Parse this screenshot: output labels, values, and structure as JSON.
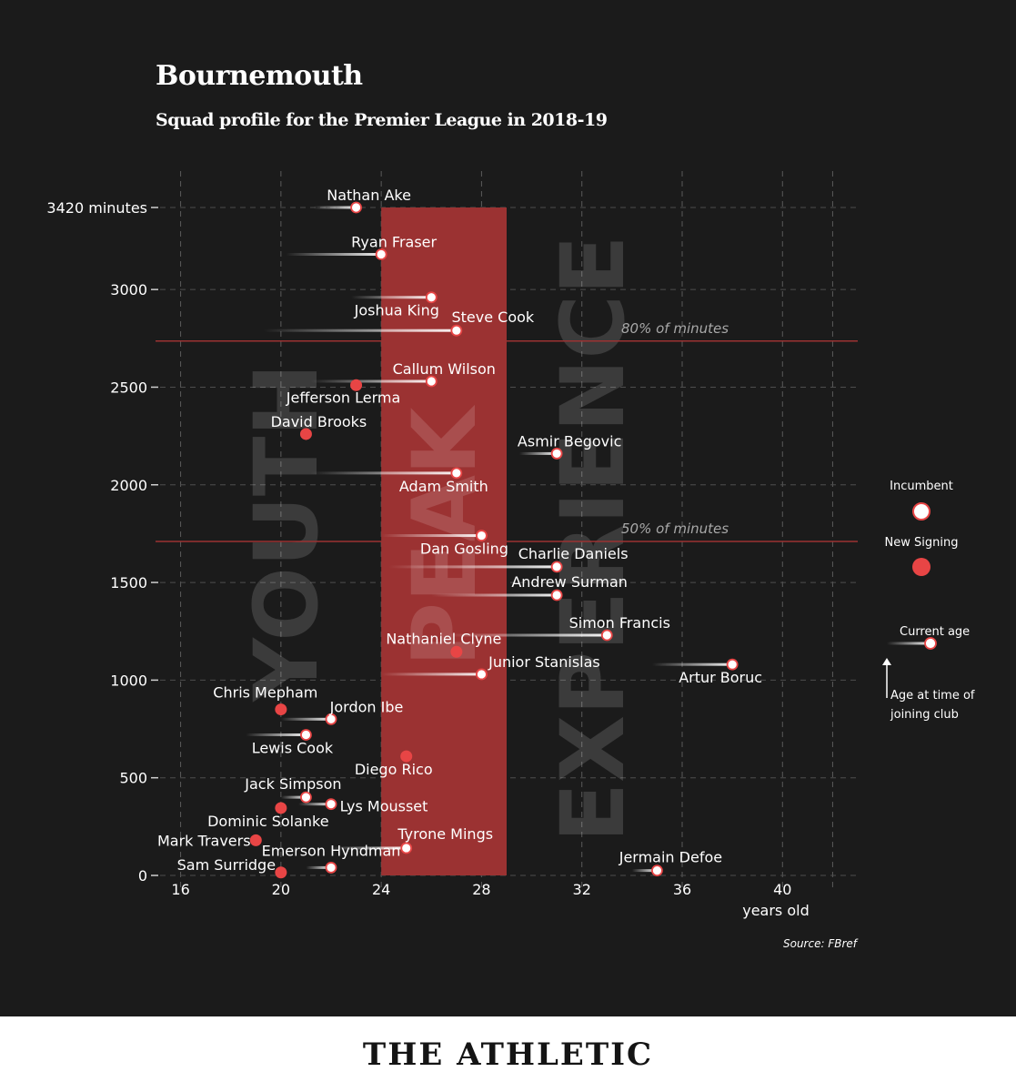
{
  "title": "Bournemouth",
  "subtitle": "Squad profile for the Premier League in 2018-19",
  "source": "Source: FBref",
  "brand": "THE ATHLETIC",
  "colors": {
    "background": "#1b1b1b",
    "peak_band": "#9b3232",
    "new_signing": "#e84545",
    "incumbent": "#ffffff",
    "threshold_line": "#9b3232"
  },
  "chart_data": {
    "type": "scatter",
    "title": "Bournemouth",
    "subtitle": "Squad profile for the Premier League in 2018-19",
    "xlabel": "years old",
    "ylabel": "",
    "xlim": [
      15,
      43
    ],
    "ylim": [
      0,
      3420
    ],
    "xticks": [
      16,
      20,
      24,
      28,
      32,
      36,
      40
    ],
    "yticks": [
      0,
      500,
      1000,
      1500,
      2000,
      2500,
      3000,
      3420
    ],
    "ytick_labels": [
      "0",
      "500",
      "1000",
      "1500",
      "2000",
      "2500",
      "3000",
      "3420 minutes"
    ],
    "grid": true,
    "zones": [
      {
        "label": "YOUTH",
        "from": 15,
        "to": 24
      },
      {
        "label": "PEAK",
        "from": 24,
        "to": 29
      },
      {
        "label": "EXPERIENCE",
        "from": 29,
        "to": 43
      }
    ],
    "thresholds": [
      {
        "label": "80% of minutes",
        "value": 2736
      },
      {
        "label": "50% of minutes",
        "value": 1710
      }
    ],
    "legend": {
      "incumbent": "Incumbent",
      "new_signing": "New Signing",
      "current_age": "Current age",
      "join_age": "Age at time of joining club"
    },
    "players": [
      {
        "name": "Nathan Ake",
        "age": 23,
        "minutes": 3420,
        "joined_age": 21.3,
        "status": "incumbent"
      },
      {
        "name": "Ryan Fraser",
        "age": 24,
        "minutes": 3180,
        "joined_age": 20.2,
        "status": "incumbent"
      },
      {
        "name": "Joshua King",
        "age": 26,
        "minutes": 2960,
        "joined_age": 22.8,
        "status": "incumbent"
      },
      {
        "name": "Steve Cook",
        "age": 27,
        "minutes": 2790,
        "joined_age": 19.3,
        "status": "incumbent"
      },
      {
        "name": "Callum Wilson",
        "age": 26,
        "minutes": 2530,
        "joined_age": 21.2,
        "status": "incumbent"
      },
      {
        "name": "Jefferson Lerma",
        "age": 23,
        "minutes": 2510,
        "joined_age": 23,
        "status": "new"
      },
      {
        "name": "David Brooks",
        "age": 21,
        "minutes": 2260,
        "joined_age": 21,
        "status": "new"
      },
      {
        "name": "Asmir Begovic",
        "age": 31,
        "minutes": 2160,
        "joined_age": 29.5,
        "status": "incumbent"
      },
      {
        "name": "Adam Smith",
        "age": 27,
        "minutes": 2060,
        "joined_age": 21.2,
        "status": "incumbent"
      },
      {
        "name": "Dan Gosling",
        "age": 28,
        "minutes": 1740,
        "joined_age": 24,
        "status": "incumbent"
      },
      {
        "name": "Charlie Daniels",
        "age": 31,
        "minutes": 1580,
        "joined_age": 24.3,
        "status": "incumbent"
      },
      {
        "name": "Andrew Surman",
        "age": 31,
        "minutes": 1435,
        "joined_age": 26,
        "status": "incumbent"
      },
      {
        "name": "Simon Francis",
        "age": 33,
        "minutes": 1230,
        "joined_age": 26.6,
        "status": "incumbent"
      },
      {
        "name": "Nathaniel Clyne",
        "age": 27,
        "minutes": 1145,
        "joined_age": 27,
        "status": "new"
      },
      {
        "name": "Artur Boruc",
        "age": 38,
        "minutes": 1080,
        "joined_age": 34.8,
        "status": "incumbent"
      },
      {
        "name": "Junior Stanislas",
        "age": 28,
        "minutes": 1030,
        "joined_age": 24,
        "status": "incumbent"
      },
      {
        "name": "Chris Mepham",
        "age": 20,
        "minutes": 850,
        "joined_age": 20,
        "status": "new"
      },
      {
        "name": "Jordon Ibe",
        "age": 22,
        "minutes": 800,
        "joined_age": 20,
        "status": "incumbent"
      },
      {
        "name": "Lewis Cook",
        "age": 21,
        "minutes": 720,
        "joined_age": 18.6,
        "status": "incumbent"
      },
      {
        "name": "Diego Rico",
        "age": 25,
        "minutes": 610,
        "joined_age": 25,
        "status": "new"
      },
      {
        "name": "Jack Simpson",
        "age": 21,
        "minutes": 400,
        "joined_age": 20,
        "status": "incumbent"
      },
      {
        "name": "Lys Mousset",
        "age": 22,
        "minutes": 365,
        "joined_age": 20.7,
        "status": "incumbent"
      },
      {
        "name": "Dominic Solanke",
        "age": 20,
        "minutes": 345,
        "joined_age": 20,
        "status": "new"
      },
      {
        "name": "Mark Travers",
        "age": 19,
        "minutes": 180,
        "joined_age": 19,
        "status": "new"
      },
      {
        "name": "Tyrone Mings",
        "age": 25,
        "minutes": 140,
        "joined_age": 22,
        "status": "incumbent"
      },
      {
        "name": "Emerson Hyndman",
        "age": 22,
        "minutes": 40,
        "joined_age": 21,
        "status": "incumbent"
      },
      {
        "name": "Sam Surridge",
        "age": 20,
        "minutes": 15,
        "joined_age": 20,
        "status": "new"
      },
      {
        "name": "Jermain Defoe",
        "age": 35,
        "minutes": 25,
        "joined_age": 34,
        "status": "incumbent"
      }
    ]
  }
}
